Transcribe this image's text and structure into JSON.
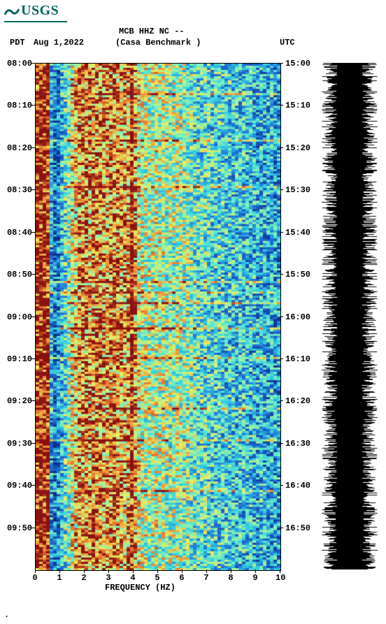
{
  "logo": {
    "text": "USGS",
    "color": "#00665c"
  },
  "header": {
    "station_line": "MCB HHZ NC --",
    "tz_left": "PDT",
    "date": "Aug 1,2022",
    "station_name": "(Casa Benchmark )",
    "tz_right": "UTC"
  },
  "axes": {
    "xlabel": "FREQUENCY (HZ)",
    "x_ticks": [
      0,
      1,
      2,
      3,
      4,
      5,
      6,
      7,
      8,
      9,
      10
    ],
    "y_left_start": "08:00",
    "y_left_ticks": [
      "08:00",
      "08:10",
      "08:20",
      "08:30",
      "08:40",
      "08:50",
      "09:00",
      "09:10",
      "09:20",
      "09:30",
      "09:40",
      "09:50"
    ],
    "y_right_ticks": [
      "15:00",
      "15:10",
      "15:20",
      "15:30",
      "15:40",
      "15:50",
      "16:00",
      "16:10",
      "16:20",
      "16:30",
      "16:40",
      "16:50"
    ]
  },
  "spectrogram": {
    "type": "heatmap",
    "width_cells": 70,
    "height_cells": 240,
    "palette": {
      "low": "#0a2a8a",
      "mid1": "#1e6fd8",
      "mid2": "#34d0e0",
      "mid3": "#7af0c0",
      "mid4": "#e8f060",
      "high": "#f08030",
      "peak": "#8a1010"
    },
    "band_profile_comment": "intensity profile across frequency 0-10Hz: strong peak band ~0.3-0.7Hz, low ~0.8-1.3Hz, speckled high ~1.5-4Hz with vertical ridge at ~4Hz, moderate 4-7Hz, cooler 7-10Hz",
    "freq_profile": [
      0.95,
      0.98,
      0.98,
      0.96,
      0.3,
      0.2,
      0.25,
      0.35,
      0.45,
      0.55,
      0.65,
      0.72,
      0.78,
      0.82,
      0.8,
      0.78,
      0.8,
      0.82,
      0.8,
      0.78,
      0.78,
      0.8,
      0.82,
      0.8,
      0.78,
      0.76,
      0.78,
      0.96,
      0.78,
      0.66,
      0.62,
      0.6,
      0.58,
      0.6,
      0.62,
      0.6,
      0.58,
      0.56,
      0.54,
      0.56,
      0.58,
      0.56,
      0.54,
      0.52,
      0.5,
      0.48,
      0.46,
      0.44,
      0.46,
      0.44,
      0.42,
      0.4,
      0.42,
      0.4,
      0.38,
      0.4,
      0.38,
      0.36,
      0.38,
      0.36,
      0.34,
      0.36,
      0.34,
      0.32,
      0.34,
      0.32,
      0.3,
      0.32,
      0.3,
      0.28
    ],
    "time_noise_amp": 0.28,
    "horizontal_streaks_comment": "occasional bright horizontal streaks",
    "streak_rows_norm": [
      0.06,
      0.15,
      0.24,
      0.43,
      0.45,
      0.47,
      0.52,
      0.58,
      0.68,
      0.74,
      0.84
    ]
  },
  "waveform": {
    "type": "seismogram-amplitude",
    "color": "#000000",
    "samples": 725,
    "base_amp": 0.72,
    "noise_amp": 0.28
  },
  "plot": {
    "background": "#ffffff",
    "axis_color": "#000000",
    "font_family": "Courier New",
    "font_size_pt": 10,
    "font_weight": "bold"
  }
}
